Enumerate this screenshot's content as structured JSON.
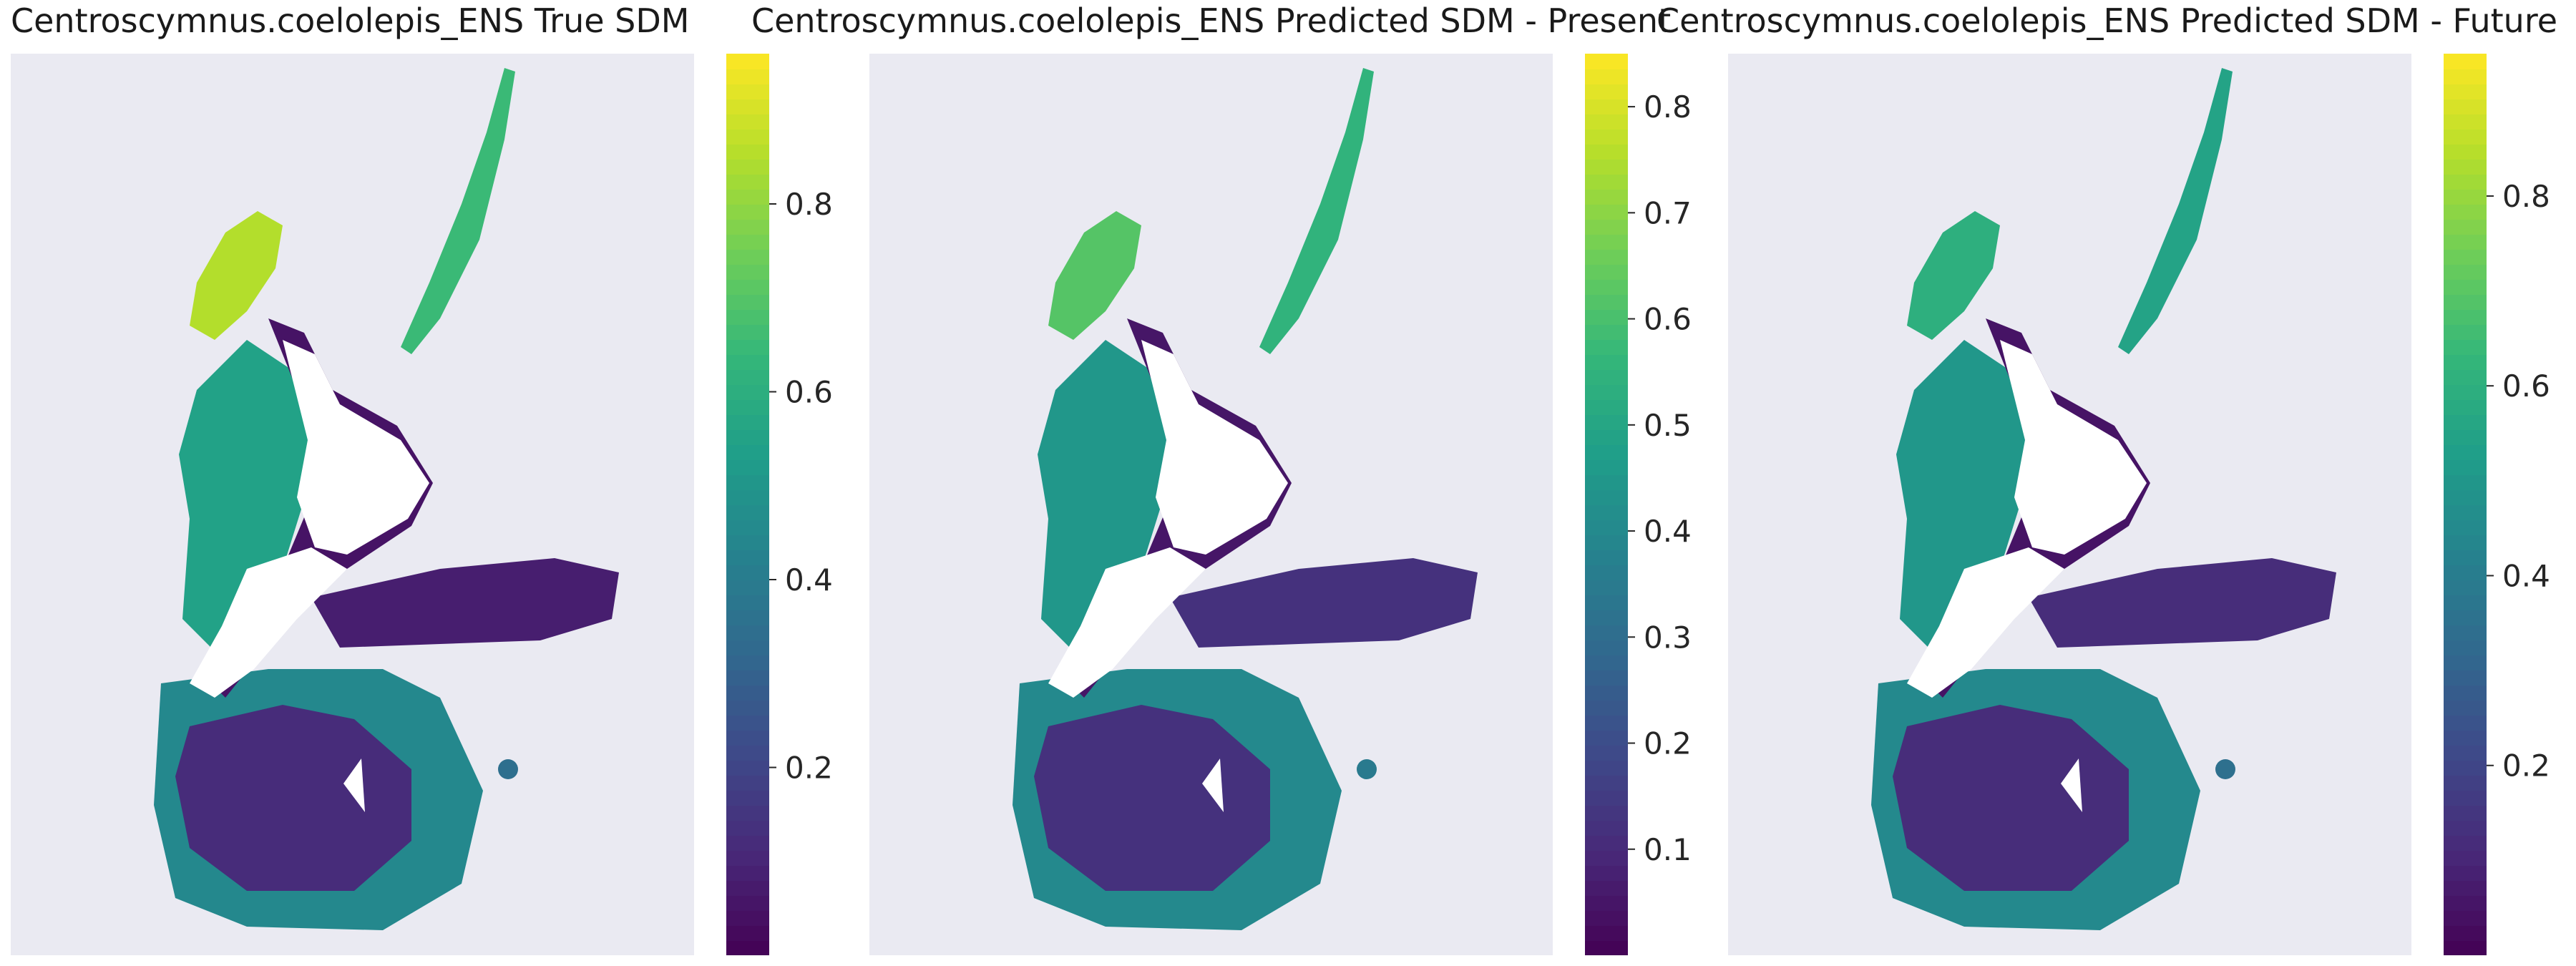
{
  "chart_data": [
    {
      "type": "heatmap",
      "title": "Centroscymnus.coelolepis_ENS True SDM",
      "colormap": "viridis",
      "colorbar": {
        "min": 0.0,
        "max": 0.96,
        "ticks": [
          "0.2",
          "0.4",
          "0.6",
          "0.8"
        ],
        "tick_values": [
          0.2,
          0.4,
          0.6,
          0.8
        ]
      },
      "legend_position": "right",
      "grid": false,
      "region_values": {
        "north_strip": 0.65,
        "northwest_shelf": 0.85,
        "coast_ring": 0.05,
        "west_lobe": 0.55,
        "chatham_rise": 0.08,
        "south_plateau": 0.12,
        "southern_shelf": 0.45
      }
    },
    {
      "type": "heatmap",
      "title": "Centroscymnus.coelolepis_ENS Predicted SDM - Present",
      "colormap": "viridis",
      "colorbar": {
        "min": 0.0,
        "max": 0.85,
        "ticks": [
          "0.1",
          "0.2",
          "0.3",
          "0.4",
          "0.5",
          "0.6",
          "0.7",
          "0.8"
        ],
        "tick_values": [
          0.1,
          0.2,
          0.3,
          0.4,
          0.5,
          0.6,
          0.7,
          0.8
        ]
      },
      "legend_position": "right",
      "grid": false,
      "region_values": {
        "north_strip": 0.55,
        "northwest_shelf": 0.62,
        "coast_ring": 0.05,
        "west_lobe": 0.45,
        "chatham_rise": 0.12,
        "south_plateau": 0.12,
        "southern_shelf": 0.4
      }
    },
    {
      "type": "heatmap",
      "title": "Centroscymnus.coelolepis_ENS Predicted SDM - Future",
      "colormap": "viridis",
      "colorbar": {
        "min": 0.0,
        "max": 0.95,
        "ticks": [
          "0.2",
          "0.4",
          "0.6",
          "0.8"
        ],
        "tick_values": [
          0.2,
          0.4,
          0.6,
          0.8
        ]
      },
      "legend_position": "right",
      "grid": false,
      "region_values": {
        "north_strip": 0.55,
        "northwest_shelf": 0.6,
        "coast_ring": 0.05,
        "west_lobe": 0.5,
        "chatham_rise": 0.12,
        "south_plateau": 0.12,
        "southern_shelf": 0.45
      }
    }
  ]
}
